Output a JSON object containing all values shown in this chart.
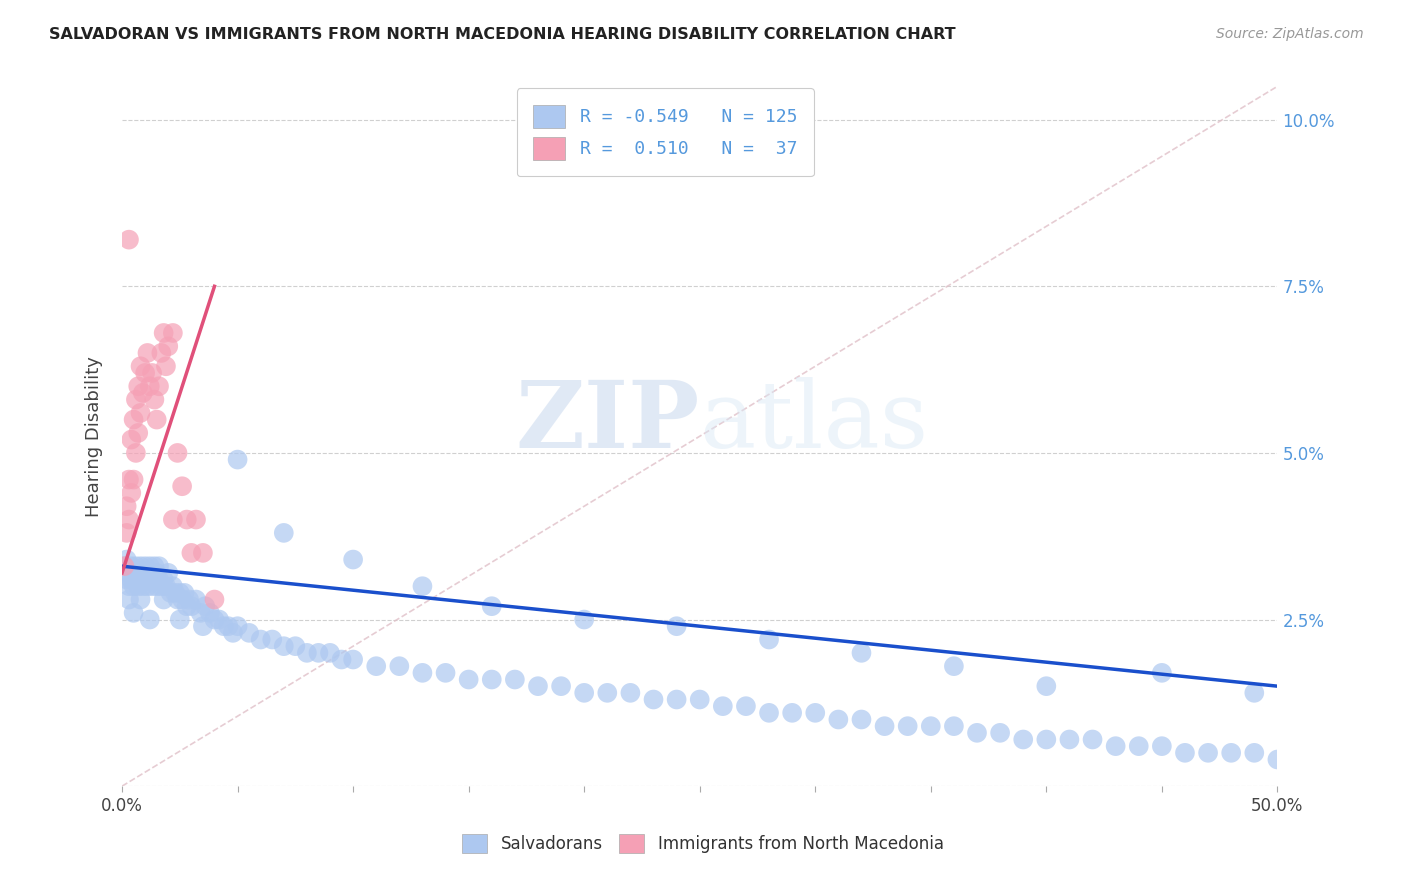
{
  "title": "SALVADORAN VS IMMIGRANTS FROM NORTH MACEDONIA HEARING DISABILITY CORRELATION CHART",
  "source": "Source: ZipAtlas.com",
  "ylabel": "Hearing Disability",
  "ytick_values": [
    0.0,
    0.025,
    0.05,
    0.075,
    0.1
  ],
  "xlim": [
    0.0,
    0.5
  ],
  "ylim": [
    0.0,
    0.105
  ],
  "salvadoran_color": "#adc8f0",
  "macedonia_color": "#f5a0b5",
  "salvadoran_line_color": "#1a4fcc",
  "macedonia_line_color": "#e0507a",
  "salvadoran_R": -0.549,
  "salvadoran_N": 125,
  "macedonia_R": 0.51,
  "macedonia_N": 37,
  "legend_label_salvadoran": "Salvadorans",
  "legend_label_macedonia": "Immigrants from North Macedonia",
  "watermark_zip": "ZIP",
  "watermark_atlas": "atlas",
  "grid_color": "#d0d0d0",
  "background_color": "#ffffff",
  "salvadoran_x": [
    0.001,
    0.002,
    0.002,
    0.003,
    0.003,
    0.004,
    0.004,
    0.005,
    0.005,
    0.006,
    0.006,
    0.007,
    0.007,
    0.008,
    0.008,
    0.009,
    0.009,
    0.01,
    0.01,
    0.011,
    0.011,
    0.012,
    0.012,
    0.013,
    0.013,
    0.014,
    0.014,
    0.015,
    0.015,
    0.016,
    0.016,
    0.017,
    0.018,
    0.019,
    0.02,
    0.021,
    0.022,
    0.023,
    0.024,
    0.025,
    0.026,
    0.027,
    0.028,
    0.029,
    0.03,
    0.032,
    0.034,
    0.036,
    0.038,
    0.04,
    0.042,
    0.044,
    0.046,
    0.048,
    0.05,
    0.055,
    0.06,
    0.065,
    0.07,
    0.075,
    0.08,
    0.085,
    0.09,
    0.095,
    0.1,
    0.11,
    0.12,
    0.13,
    0.14,
    0.15,
    0.16,
    0.17,
    0.18,
    0.19,
    0.2,
    0.21,
    0.22,
    0.23,
    0.24,
    0.25,
    0.26,
    0.27,
    0.28,
    0.29,
    0.3,
    0.31,
    0.32,
    0.33,
    0.34,
    0.35,
    0.36,
    0.37,
    0.38,
    0.39,
    0.4,
    0.41,
    0.42,
    0.43,
    0.44,
    0.45,
    0.46,
    0.47,
    0.48,
    0.49,
    0.5,
    0.003,
    0.005,
    0.008,
    0.012,
    0.018,
    0.025,
    0.035,
    0.05,
    0.07,
    0.1,
    0.13,
    0.16,
    0.2,
    0.24,
    0.28,
    0.32,
    0.36,
    0.4,
    0.45,
    0.49
  ],
  "salvadoran_y": [
    0.033,
    0.031,
    0.034,
    0.03,
    0.032,
    0.031,
    0.033,
    0.03,
    0.032,
    0.031,
    0.033,
    0.03,
    0.032,
    0.031,
    0.033,
    0.03,
    0.032,
    0.031,
    0.033,
    0.03,
    0.032,
    0.031,
    0.033,
    0.03,
    0.032,
    0.031,
    0.033,
    0.03,
    0.032,
    0.031,
    0.033,
    0.03,
    0.031,
    0.03,
    0.032,
    0.029,
    0.03,
    0.029,
    0.028,
    0.029,
    0.028,
    0.029,
    0.027,
    0.028,
    0.027,
    0.028,
    0.026,
    0.027,
    0.026,
    0.025,
    0.025,
    0.024,
    0.024,
    0.023,
    0.024,
    0.023,
    0.022,
    0.022,
    0.021,
    0.021,
    0.02,
    0.02,
    0.02,
    0.019,
    0.019,
    0.018,
    0.018,
    0.017,
    0.017,
    0.016,
    0.016,
    0.016,
    0.015,
    0.015,
    0.014,
    0.014,
    0.014,
    0.013,
    0.013,
    0.013,
    0.012,
    0.012,
    0.011,
    0.011,
    0.011,
    0.01,
    0.01,
    0.009,
    0.009,
    0.009,
    0.009,
    0.008,
    0.008,
    0.007,
    0.007,
    0.007,
    0.007,
    0.006,
    0.006,
    0.006,
    0.005,
    0.005,
    0.005,
    0.005,
    0.004,
    0.028,
    0.026,
    0.028,
    0.025,
    0.028,
    0.025,
    0.024,
    0.049,
    0.038,
    0.034,
    0.03,
    0.027,
    0.025,
    0.024,
    0.022,
    0.02,
    0.018,
    0.015,
    0.017,
    0.014
  ],
  "macedonia_x": [
    0.001,
    0.002,
    0.002,
    0.003,
    0.003,
    0.004,
    0.004,
    0.005,
    0.005,
    0.006,
    0.006,
    0.007,
    0.007,
    0.008,
    0.008,
    0.009,
    0.01,
    0.011,
    0.012,
    0.013,
    0.014,
    0.015,
    0.016,
    0.017,
    0.018,
    0.019,
    0.02,
    0.022,
    0.024,
    0.026,
    0.028,
    0.03,
    0.032,
    0.035,
    0.04,
    0.003,
    0.022
  ],
  "macedonia_y": [
    0.033,
    0.038,
    0.042,
    0.04,
    0.046,
    0.044,
    0.052,
    0.046,
    0.055,
    0.05,
    0.058,
    0.053,
    0.06,
    0.056,
    0.063,
    0.059,
    0.062,
    0.065,
    0.06,
    0.062,
    0.058,
    0.055,
    0.06,
    0.065,
    0.068,
    0.063,
    0.066,
    0.068,
    0.05,
    0.045,
    0.04,
    0.035,
    0.04,
    0.035,
    0.028,
    0.082,
    0.04
  ]
}
